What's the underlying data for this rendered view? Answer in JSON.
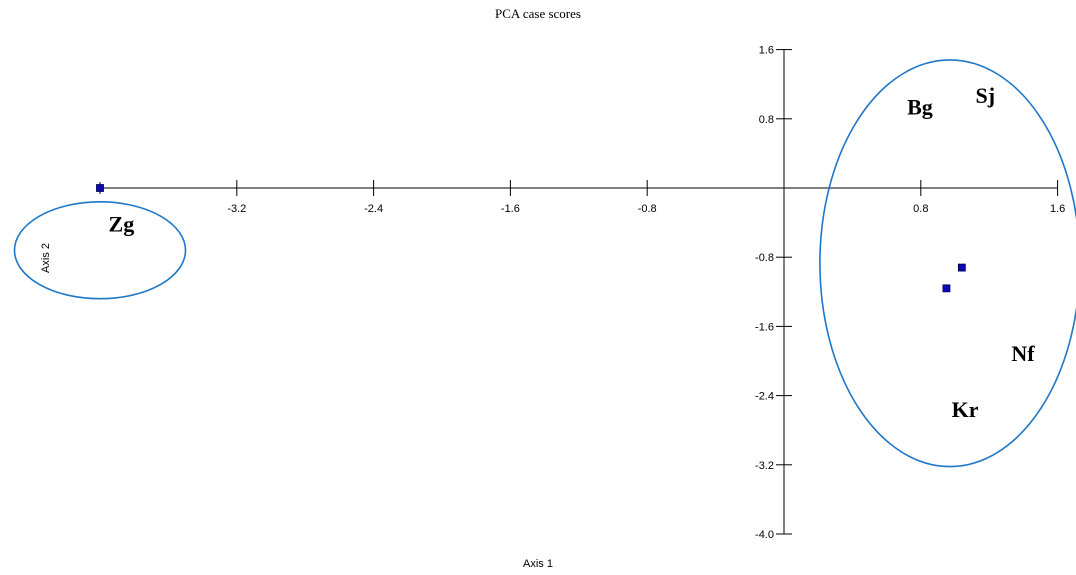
{
  "chart_data": {
    "type": "scatter",
    "title": "PCA case scores",
    "xlabel": "Axis 1",
    "ylabel": "Axis 2",
    "xlim": [
      -4.0,
      1.6
    ],
    "ylim": [
      -4.0,
      1.6
    ],
    "x_ticks": [
      -3.2,
      -2.4,
      -1.6,
      -0.8,
      0.8,
      1.6
    ],
    "x_tick_labels": [
      "-3.2",
      "-2.4",
      "-1.6",
      "-0.8",
      "0.8",
      "1.6"
    ],
    "y_ticks": [
      1.6,
      0.8,
      -0.8,
      -1.6,
      -2.4,
      -3.2,
      -4.0
    ],
    "y_tick_labels": [
      "1.6",
      "0.8",
      "-0.8",
      "-1.6",
      "-2.4",
      "-3.2",
      "-4.0"
    ],
    "points": [
      {
        "x": -4.0,
        "y": 0.0
      },
      {
        "x": 1.04,
        "y": -0.92
      },
      {
        "x": 0.95,
        "y": -1.16
      }
    ],
    "group_labels": [
      {
        "text": "Zg",
        "x": -3.95,
        "y": -0.5
      },
      {
        "text": "Bg",
        "x": 0.72,
        "y": 0.85
      },
      {
        "text": "Sj",
        "x": 1.12,
        "y": 0.98
      },
      {
        "text": "Nf",
        "x": 1.33,
        "y": -2.0
      },
      {
        "text": "Kr",
        "x": 0.98,
        "y": -2.65
      }
    ],
    "ellipses": [
      {
        "cx": -4.0,
        "cy": -0.72,
        "rx": 0.5,
        "ry": 0.56
      },
      {
        "cx": 0.97,
        "cy": -0.87,
        "rx": 0.76,
        "ry": 2.35
      }
    ],
    "grid": false,
    "colors": {
      "marker_fill": "#0a0ab4",
      "marker_stroke": "#000050",
      "ellipse": "#1f77c8",
      "axis": "#000000"
    }
  }
}
